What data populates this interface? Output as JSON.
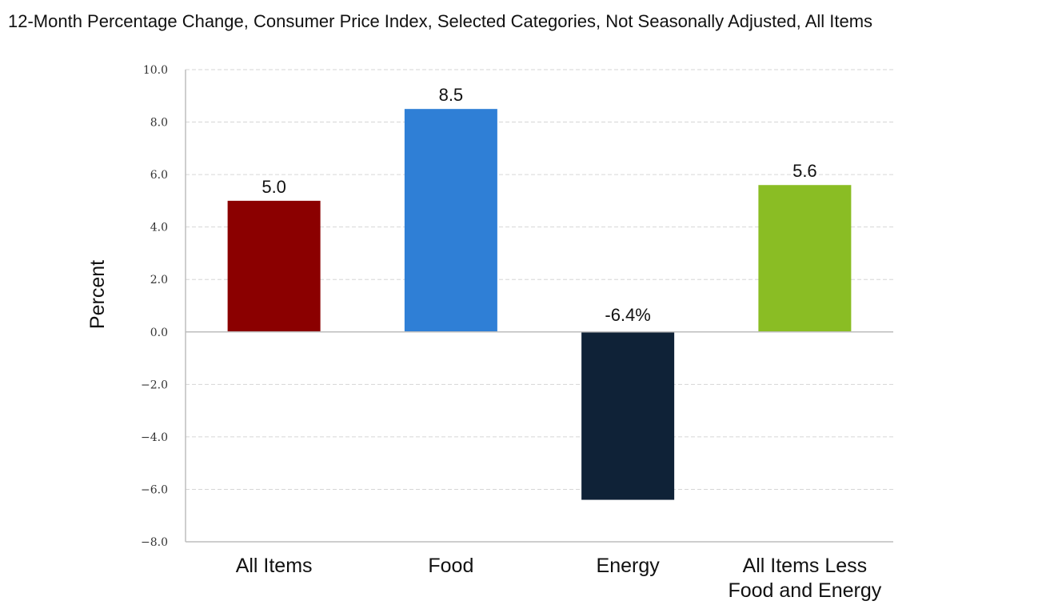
{
  "chart_data": {
    "type": "bar",
    "title": "12-Month Percentage Change, Consumer Price Index, Selected Categories, Not Seasonally Adjusted, All Items",
    "ylabel": "Percent",
    "xlabel": "",
    "ylim": [
      -8,
      10
    ],
    "yticks": [
      "10.0",
      "8.0",
      "6.0",
      "4.0",
      "2.0",
      "0.0",
      "−2.0",
      "−4.0",
      "−6.0",
      "−8.0"
    ],
    "ytick_values": [
      10,
      8,
      6,
      4,
      2,
      0,
      -2,
      -4,
      -6,
      -8
    ],
    "categories": [
      [
        "All Items"
      ],
      [
        "Food"
      ],
      [
        "Energy"
      ],
      [
        "All Items Less",
        "Food and Energy"
      ]
    ],
    "values": [
      5.0,
      8.5,
      -6.4,
      5.6
    ],
    "data_labels": [
      "5.0",
      "8.5",
      "-6.4%",
      "5.6"
    ],
    "colors": [
      "#8b0000",
      "#2f7fd6",
      "#0f2237",
      "#8abd24"
    ],
    "grid": true
  }
}
